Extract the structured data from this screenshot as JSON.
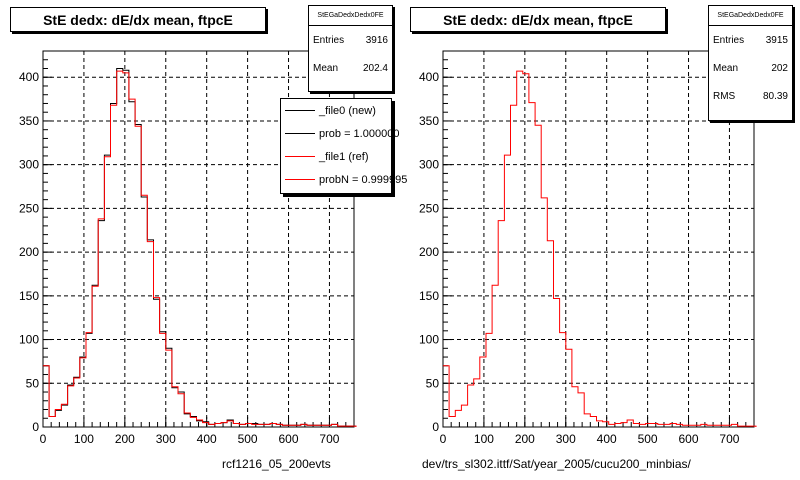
{
  "colors": {
    "new": "#000000",
    "ref": "#ff0000",
    "grid": "#000000"
  },
  "charts": [
    {
      "title": "StE dedx: dE/dx mean, ftpcE",
      "stats": {
        "name": "StEGaDedxDedx0FE",
        "rows": [
          {
            "label": "Entries",
            "value": "3916"
          },
          {
            "label": "Mean",
            "value": "202.4"
          }
        ]
      },
      "legend": [
        {
          "label": "_file0 (new)",
          "color": "#000000"
        },
        {
          "label": "prob = 1.000000",
          "color": "#000000"
        },
        {
          "label": "_file1 (ref)",
          "color": "#ff0000"
        },
        {
          "label": "probN = 0.999995",
          "color": "#ff0000"
        }
      ],
      "caption": "rcf1216_05_200evts"
    },
    {
      "title": "StE dedx: dE/dx mean, ftpcE",
      "stats": {
        "name": "StEGaDedxDedx0FE",
        "rows": [
          {
            "label": "Entries",
            "value": "3915"
          },
          {
            "label": "Mean",
            "value": "202"
          },
          {
            "label": "RMS",
            "value": "80.39"
          }
        ]
      },
      "legend": [],
      "caption": "dev/trs_sl302.ittf/Sat/year_2005/cucu200_minbias/"
    }
  ],
  "chart_data": [
    {
      "type": "histogram",
      "title": "StE dedx: dE/dx mean, ftpcE",
      "xlim": [
        0,
        760
      ],
      "ylim": [
        0,
        430
      ],
      "xticks": [
        0,
        100,
        200,
        300,
        400,
        500,
        600,
        700
      ],
      "yticks": [
        0,
        50,
        100,
        150,
        200,
        250,
        300,
        350,
        400
      ],
      "bin_width": 15,
      "grid": true,
      "series": [
        {
          "name": "_file0 (new)",
          "color": "#000000",
          "values": [
            70,
            12,
            19,
            25,
            48,
            57,
            80,
            107,
            162,
            236,
            311,
            370,
            410,
            408,
            372,
            346,
            263,
            214,
            146,
            109,
            90,
            45,
            40,
            15,
            12,
            7,
            6,
            3,
            4,
            5,
            8,
            4,
            3,
            4,
            4,
            3,
            3,
            4,
            3,
            2,
            2,
            2,
            3,
            2,
            2,
            2,
            2,
            3,
            1,
            1,
            1
          ]
        },
        {
          "name": "_file1 (ref)",
          "color": "#ff0000",
          "values": [
            70,
            12,
            20,
            26,
            47,
            56,
            79,
            108,
            161,
            238,
            309,
            368,
            407,
            405,
            375,
            344,
            265,
            212,
            148,
            107,
            88,
            46,
            38,
            16,
            11,
            8,
            5,
            3,
            4,
            5,
            7,
            4,
            3,
            4,
            3,
            3,
            3,
            4,
            3,
            2,
            2,
            2,
            3,
            2,
            2,
            2,
            2,
            3,
            1,
            1,
            1
          ]
        }
      ]
    },
    {
      "type": "histogram",
      "title": "StE dedx: dE/dx mean, ftpcE",
      "xlim": [
        0,
        760
      ],
      "ylim": [
        0,
        430
      ],
      "xticks": [
        0,
        100,
        200,
        300,
        400,
        500,
        600,
        700
      ],
      "yticks": [
        0,
        50,
        100,
        150,
        200,
        250,
        300,
        350,
        400
      ],
      "bin_width": 15,
      "grid": true,
      "series": [
        {
          "name": "",
          "color": "#ff0000",
          "values": [
            70,
            12,
            19,
            25,
            48,
            55,
            80,
            107,
            162,
            236,
            311,
            368,
            407,
            404,
            371,
            345,
            262,
            213,
            147,
            108,
            89,
            46,
            39,
            15,
            12,
            7,
            6,
            3,
            4,
            5,
            8,
            4,
            3,
            4,
            4,
            3,
            3,
            4,
            3,
            2,
            2,
            2,
            3,
            2,
            2,
            2,
            2,
            3,
            1,
            1,
            1
          ]
        }
      ]
    }
  ]
}
